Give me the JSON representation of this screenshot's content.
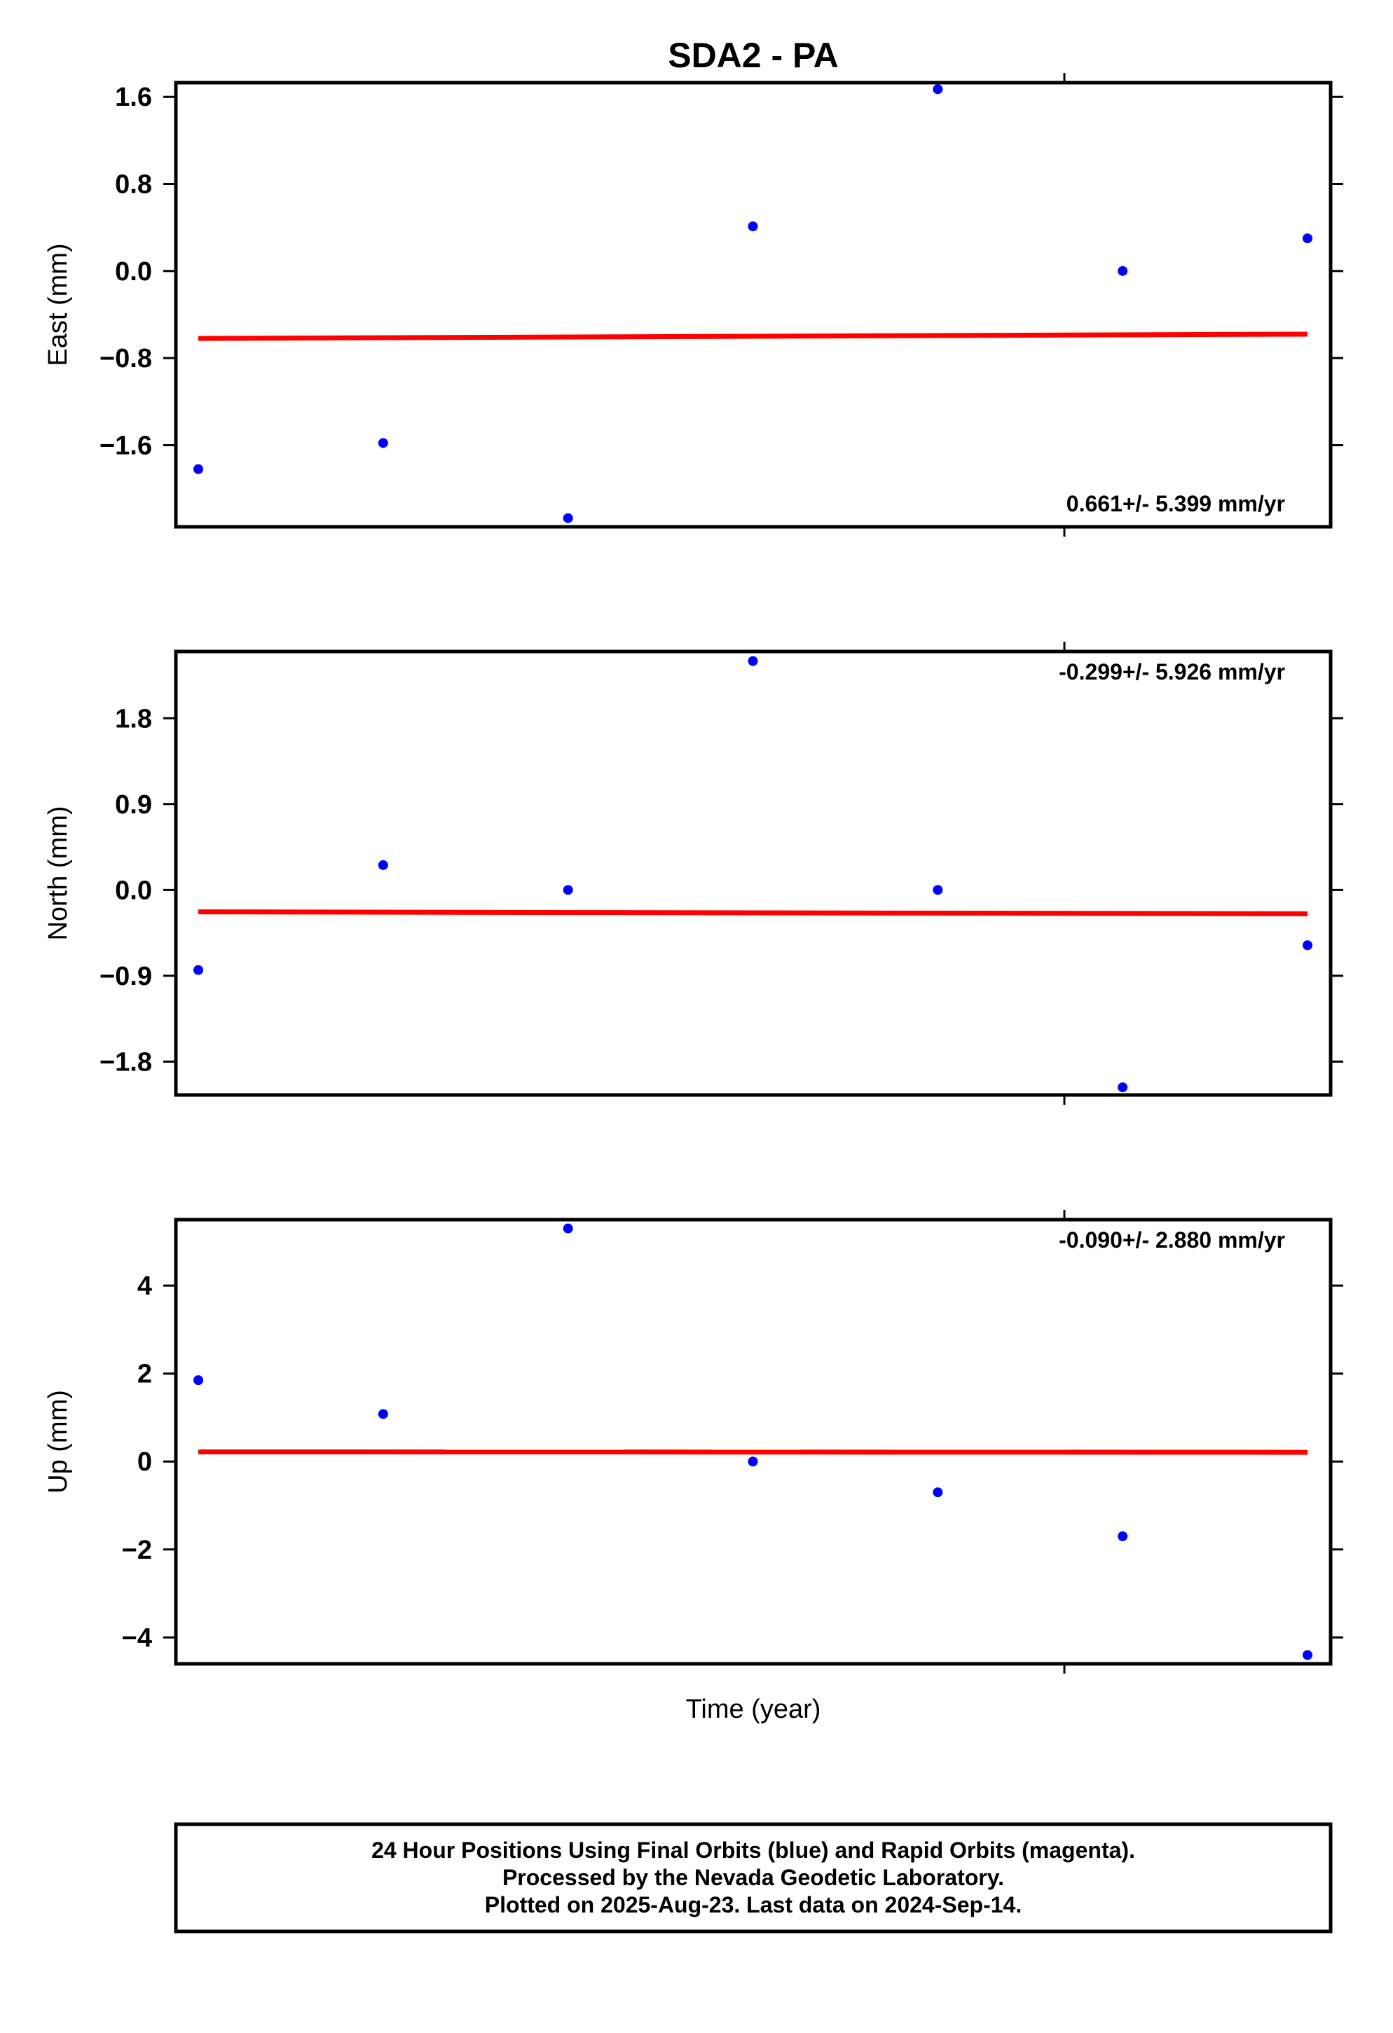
{
  "title": "SDA2 - PA",
  "xlabel": "Time (year)",
  "colors": {
    "points": "#0000ff",
    "trend": "#ff0000",
    "frame": "#000000"
  },
  "footer": {
    "line1": "24 Hour Positions Using Final Orbits (blue) and Rapid Orbits (magenta).",
    "line2": "Processed by the Nevada Geodetic Laboratory.",
    "line3": "Plotted on 2025-Aug-23. Last data on 2024-Sep-14."
  },
  "chart_data": [
    {
      "type": "scatter",
      "ylabel": "East (mm)",
      "rate_label": "0.661+/- 5.399 mm/yr",
      "ylim": [
        -2.35,
        1.73
      ],
      "yticks": [
        -1.6,
        -0.8,
        0.0,
        0.8,
        1.6
      ],
      "ytick_labels": [
        "−1.6",
        "−0.8",
        "0.0",
        "0.8",
        "1.6"
      ],
      "points": [
        {
          "x": 0,
          "y": -1.82
        },
        {
          "x": 1,
          "y": -1.58
        },
        {
          "x": 2,
          "y": -2.27
        },
        {
          "x": 3,
          "y": 0.41
        },
        {
          "x": 4,
          "y": 1.67
        },
        {
          "x": 5,
          "y": 0.0
        },
        {
          "x": 6,
          "y": 0.3
        }
      ],
      "trend": {
        "y_start": -0.62,
        "y_end": -0.58
      }
    },
    {
      "type": "scatter",
      "ylabel": "North (mm)",
      "rate_label": "-0.299+/- 5.926 mm/yr",
      "ylim": [
        -2.15,
        2.5
      ],
      "yticks": [
        -1.8,
        -0.9,
        0.0,
        0.9,
        1.8
      ],
      "ytick_labels": [
        "−1.8",
        "−0.9",
        "0.0",
        "0.9",
        "1.8"
      ],
      "points": [
        {
          "x": 0,
          "y": -0.84
        },
        {
          "x": 1,
          "y": 0.26
        },
        {
          "x": 2,
          "y": 0.0
        },
        {
          "x": 3,
          "y": 2.4
        },
        {
          "x": 4,
          "y": 0.0
        },
        {
          "x": 5,
          "y": -2.07
        },
        {
          "x": 6,
          "y": -0.58
        }
      ],
      "trend": {
        "y_start": -0.23,
        "y_end": -0.25
      }
    },
    {
      "type": "scatter",
      "ylabel": "Up (mm)",
      "rate_label": "-0.090+/- 2.880 mm/yr",
      "ylim": [
        -4.6,
        5.5
      ],
      "yticks": [
        -4,
        -2,
        0,
        2,
        4
      ],
      "ytick_labels": [
        "−4",
        "−2",
        "0",
        "2",
        "4"
      ],
      "points": [
        {
          "x": 0,
          "y": 1.85
        },
        {
          "x": 1,
          "y": 1.08
        },
        {
          "x": 2,
          "y": 5.3
        },
        {
          "x": 3,
          "y": 0.0
        },
        {
          "x": 4,
          "y": -0.7
        },
        {
          "x": 5,
          "y": -1.7
        },
        {
          "x": 6,
          "y": -4.4
        }
      ],
      "trend": {
        "y_start": 0.22,
        "y_end": 0.21
      }
    }
  ]
}
